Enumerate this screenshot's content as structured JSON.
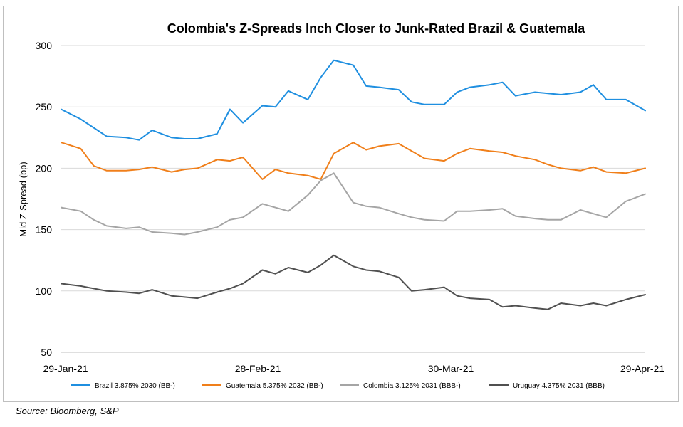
{
  "chart_data": {
    "type": "line",
    "title": "Colombia's Z-Spreads Inch Closer to Junk-Rated Brazil & Guatemala",
    "xlabel": "",
    "ylabel": "Mid Z-Spread (bp)",
    "ylim": [
      50,
      300
    ],
    "yticks": [
      50,
      100,
      150,
      200,
      250,
      300
    ],
    "xlim": [
      "2021-01-29",
      "2021-04-29"
    ],
    "xtick_labels": [
      "29-Jan-21",
      "28-Feb-21",
      "30-Mar-21",
      "29-Apr-21"
    ],
    "grid": true,
    "legend_position": "bottom",
    "x": [
      "2021-01-29",
      "2021-02-01",
      "2021-02-03",
      "2021-02-05",
      "2021-02-08",
      "2021-02-10",
      "2021-02-12",
      "2021-02-15",
      "2021-02-17",
      "2021-02-19",
      "2021-02-22",
      "2021-02-24",
      "2021-02-26",
      "2021-03-01",
      "2021-03-03",
      "2021-03-05",
      "2021-03-08",
      "2021-03-10",
      "2021-03-12",
      "2021-03-15",
      "2021-03-17",
      "2021-03-19",
      "2021-03-22",
      "2021-03-24",
      "2021-03-26",
      "2021-03-29",
      "2021-03-31",
      "2021-04-02",
      "2021-04-05",
      "2021-04-07",
      "2021-04-09",
      "2021-04-12",
      "2021-04-14",
      "2021-04-16",
      "2021-04-19",
      "2021-04-21",
      "2021-04-23",
      "2021-04-26",
      "2021-04-29"
    ],
    "series": [
      {
        "name": "Brazil 3.875% 2030 (BB-)",
        "color": "#1f8fe0",
        "values": [
          248,
          240,
          233,
          226,
          225,
          223,
          231,
          225,
          224,
          224,
          228,
          248,
          237,
          251,
          250,
          263,
          256,
          274,
          288,
          284,
          267,
          266,
          264,
          254,
          252,
          252,
          262,
          266,
          268,
          270,
          259,
          262,
          261,
          260,
          262,
          268,
          256,
          256,
          247
        ]
      },
      {
        "name": "Guatemala 5.375% 2032 (BB-)",
        "color": "#f07f1a",
        "values": [
          221,
          216,
          202,
          198,
          198,
          199,
          201,
          197,
          199,
          200,
          207,
          206,
          209,
          191,
          199,
          196,
          194,
          191,
          212,
          221,
          215,
          218,
          220,
          214,
          208,
          206,
          212,
          216,
          214,
          213,
          210,
          207,
          203,
          200,
          198,
          201,
          197,
          196,
          200
        ]
      },
      {
        "name": "Colombia 3.125% 2031 (BBB-)",
        "color": "#a5a5a5",
        "values": [
          168,
          165,
          158,
          153,
          151,
          152,
          148,
          147,
          146,
          148,
          152,
          158,
          160,
          171,
          168,
          165,
          178,
          190,
          196,
          172,
          169,
          168,
          163,
          160,
          158,
          157,
          165,
          165,
          166,
          167,
          161,
          159,
          158,
          158,
          166,
          163,
          160,
          173,
          179
        ]
      },
      {
        "name": "Uruguay 4.375% 2031 (BBB)",
        "color": "#505050",
        "values": [
          106,
          104,
          102,
          100,
          99,
          98,
          101,
          96,
          95,
          94,
          99,
          102,
          106,
          117,
          114,
          119,
          115,
          121,
          129,
          120,
          117,
          116,
          111,
          100,
          101,
          103,
          96,
          94,
          93,
          87,
          88,
          86,
          85,
          90,
          88,
          90,
          88,
          93,
          97
        ]
      }
    ]
  },
  "source_note": "Source: Bloomberg, S&P"
}
